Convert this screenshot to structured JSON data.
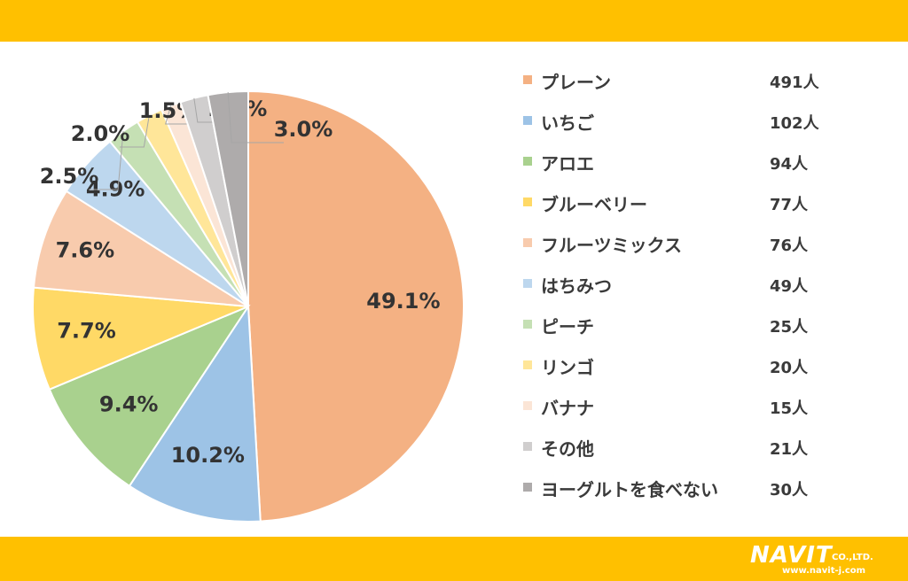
{
  "chart_data": {
    "type": "pie",
    "start_angle": "12 o'clock, clockwise",
    "slices": [
      {
        "label": "プレーン",
        "count": "491人",
        "percent": "49.1%",
        "value": 49.1,
        "color": "#F4B183"
      },
      {
        "label": "いちご",
        "count": "102人",
        "percent": "10.2%",
        "value": 10.2,
        "color": "#9DC3E6"
      },
      {
        "label": "アロエ",
        "count": "94人",
        "percent": "9.4%",
        "value": 9.4,
        "color": "#A9D18E"
      },
      {
        "label": "ブルーベリー",
        "count": "77人",
        "percent": "7.7%",
        "value": 7.7,
        "color": "#FFD966"
      },
      {
        "label": "フルーツミックス",
        "count": "76人",
        "percent": "7.6%",
        "value": 7.6,
        "color": "#F8CBAD"
      },
      {
        "label": "はちみつ",
        "count": "49人",
        "percent": "4.9%",
        "value": 4.9,
        "color": "#BDD7EE"
      },
      {
        "label": "ピーチ",
        "count": "25人",
        "percent": "2.5%",
        "value": 2.5,
        "color": "#C5E0B4"
      },
      {
        "label": "リンゴ",
        "count": "20人",
        "percent": "2.0%",
        "value": 2.0,
        "color": "#FFE699"
      },
      {
        "label": "バナナ",
        "count": "15人",
        "percent": "1.5%",
        "value": 1.5,
        "color": "#FBE5D6"
      },
      {
        "label": "その他",
        "count": "21人",
        "percent": "2.1%",
        "value": 2.1,
        "color": "#D0CECE"
      },
      {
        "label": "ヨーグルトを食べない",
        "count": "30人",
        "percent": "3.0%",
        "value": 3.0,
        "color": "#AEABAB"
      }
    ],
    "legend_placement": "right"
  },
  "branding": {
    "logo_text": "NAVIT",
    "logo_suffix": "CO.,LTD.",
    "url": "www.navit-j.com",
    "band_color": "#FFC000"
  }
}
